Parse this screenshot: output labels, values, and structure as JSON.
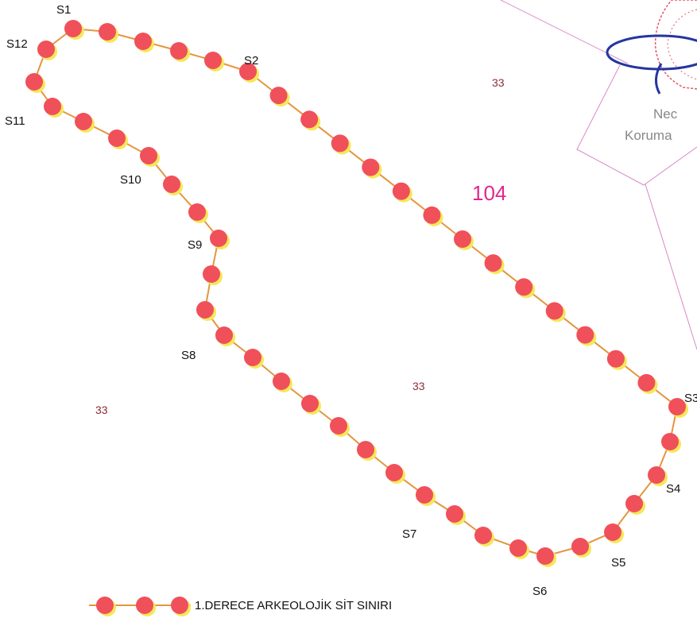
{
  "map": {
    "parcel_labels": {
      "top_right": "33",
      "big_parcel": "104",
      "center": "33",
      "left": "33"
    },
    "stamp_text": {
      "line1": "Nec",
      "line2": "Koruma"
    },
    "points": [
      {
        "id": "S1",
        "label": "S1"
      },
      {
        "id": "S2",
        "label": "S2"
      },
      {
        "id": "S3",
        "label": "S3"
      },
      {
        "id": "S4",
        "label": "S4"
      },
      {
        "id": "S5",
        "label": "S5"
      },
      {
        "id": "S6",
        "label": "S6"
      },
      {
        "id": "S7",
        "label": "S7"
      },
      {
        "id": "S8",
        "label": "S8"
      },
      {
        "id": "S9",
        "label": "S9"
      },
      {
        "id": "S10",
        "label": "S10"
      },
      {
        "id": "S11",
        "label": "S11"
      },
      {
        "id": "S12",
        "label": "S12"
      }
    ],
    "legend": {
      "label": "1.DERECE ARKEOLOJİK SİT SINIRI"
    },
    "colors": {
      "boundary_dot": "#f0505a",
      "dot_shadow": "#f5e85a",
      "boundary_line": "#e4963c",
      "parcel_line": "#d889c8",
      "stamp_red": "#e05a6a",
      "stamp_blue": "#2535a0"
    }
  }
}
